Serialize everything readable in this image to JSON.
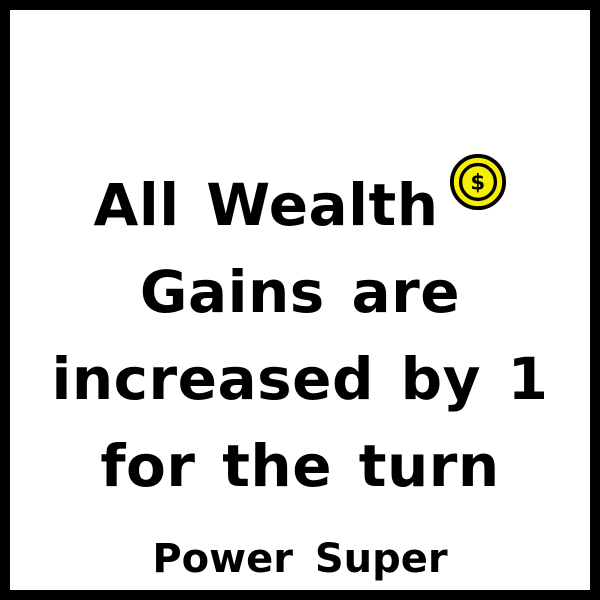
{
  "card": {
    "text_lines": [
      "All Wealth",
      "Gains are",
      "increased by 1",
      "for the turn"
    ],
    "icon": "wealth-coin-icon",
    "type_label": "Power Super"
  },
  "colors": {
    "border": "#000000",
    "background": "#ffffff",
    "text": "#000000",
    "coin_fill": "#f6ef00",
    "coin_outline": "#000000"
  }
}
